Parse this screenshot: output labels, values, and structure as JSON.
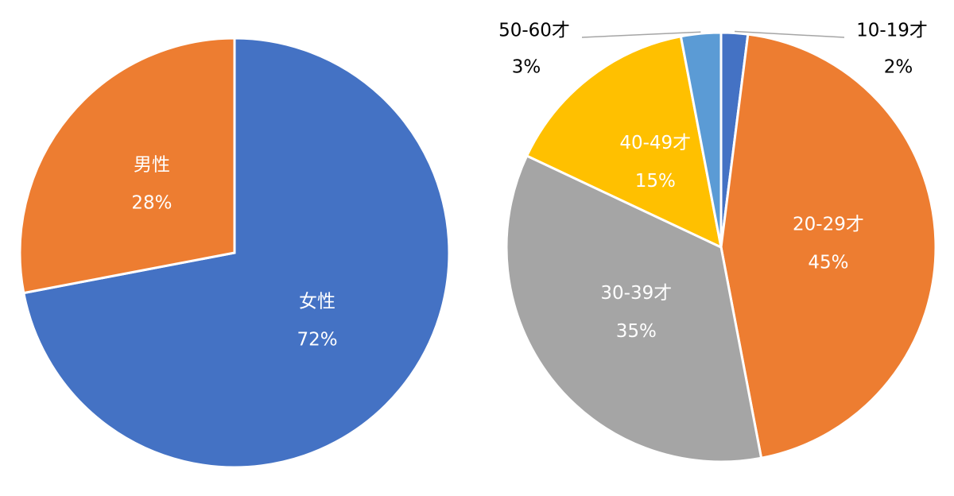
{
  "chart_data": [
    {
      "type": "pie",
      "categories": [
        "女性",
        "男性"
      ],
      "values": [
        72,
        28
      ],
      "value_labels": [
        "72%",
        "28%"
      ],
      "colors": [
        "#4472c4",
        "#ed7d31"
      ]
    },
    {
      "type": "pie",
      "categories": [
        "10-19才",
        "20-29才",
        "30-39才",
        "40-49才",
        "50-60才"
      ],
      "values": [
        2,
        45,
        35,
        15,
        3
      ],
      "value_labels": [
        "2%",
        "45%",
        "35%",
        "15%",
        "3%"
      ],
      "colors": [
        "#4472c4",
        "#ed7d31",
        "#a5a5a5",
        "#ffc000",
        "#5b9bd5"
      ]
    }
  ]
}
